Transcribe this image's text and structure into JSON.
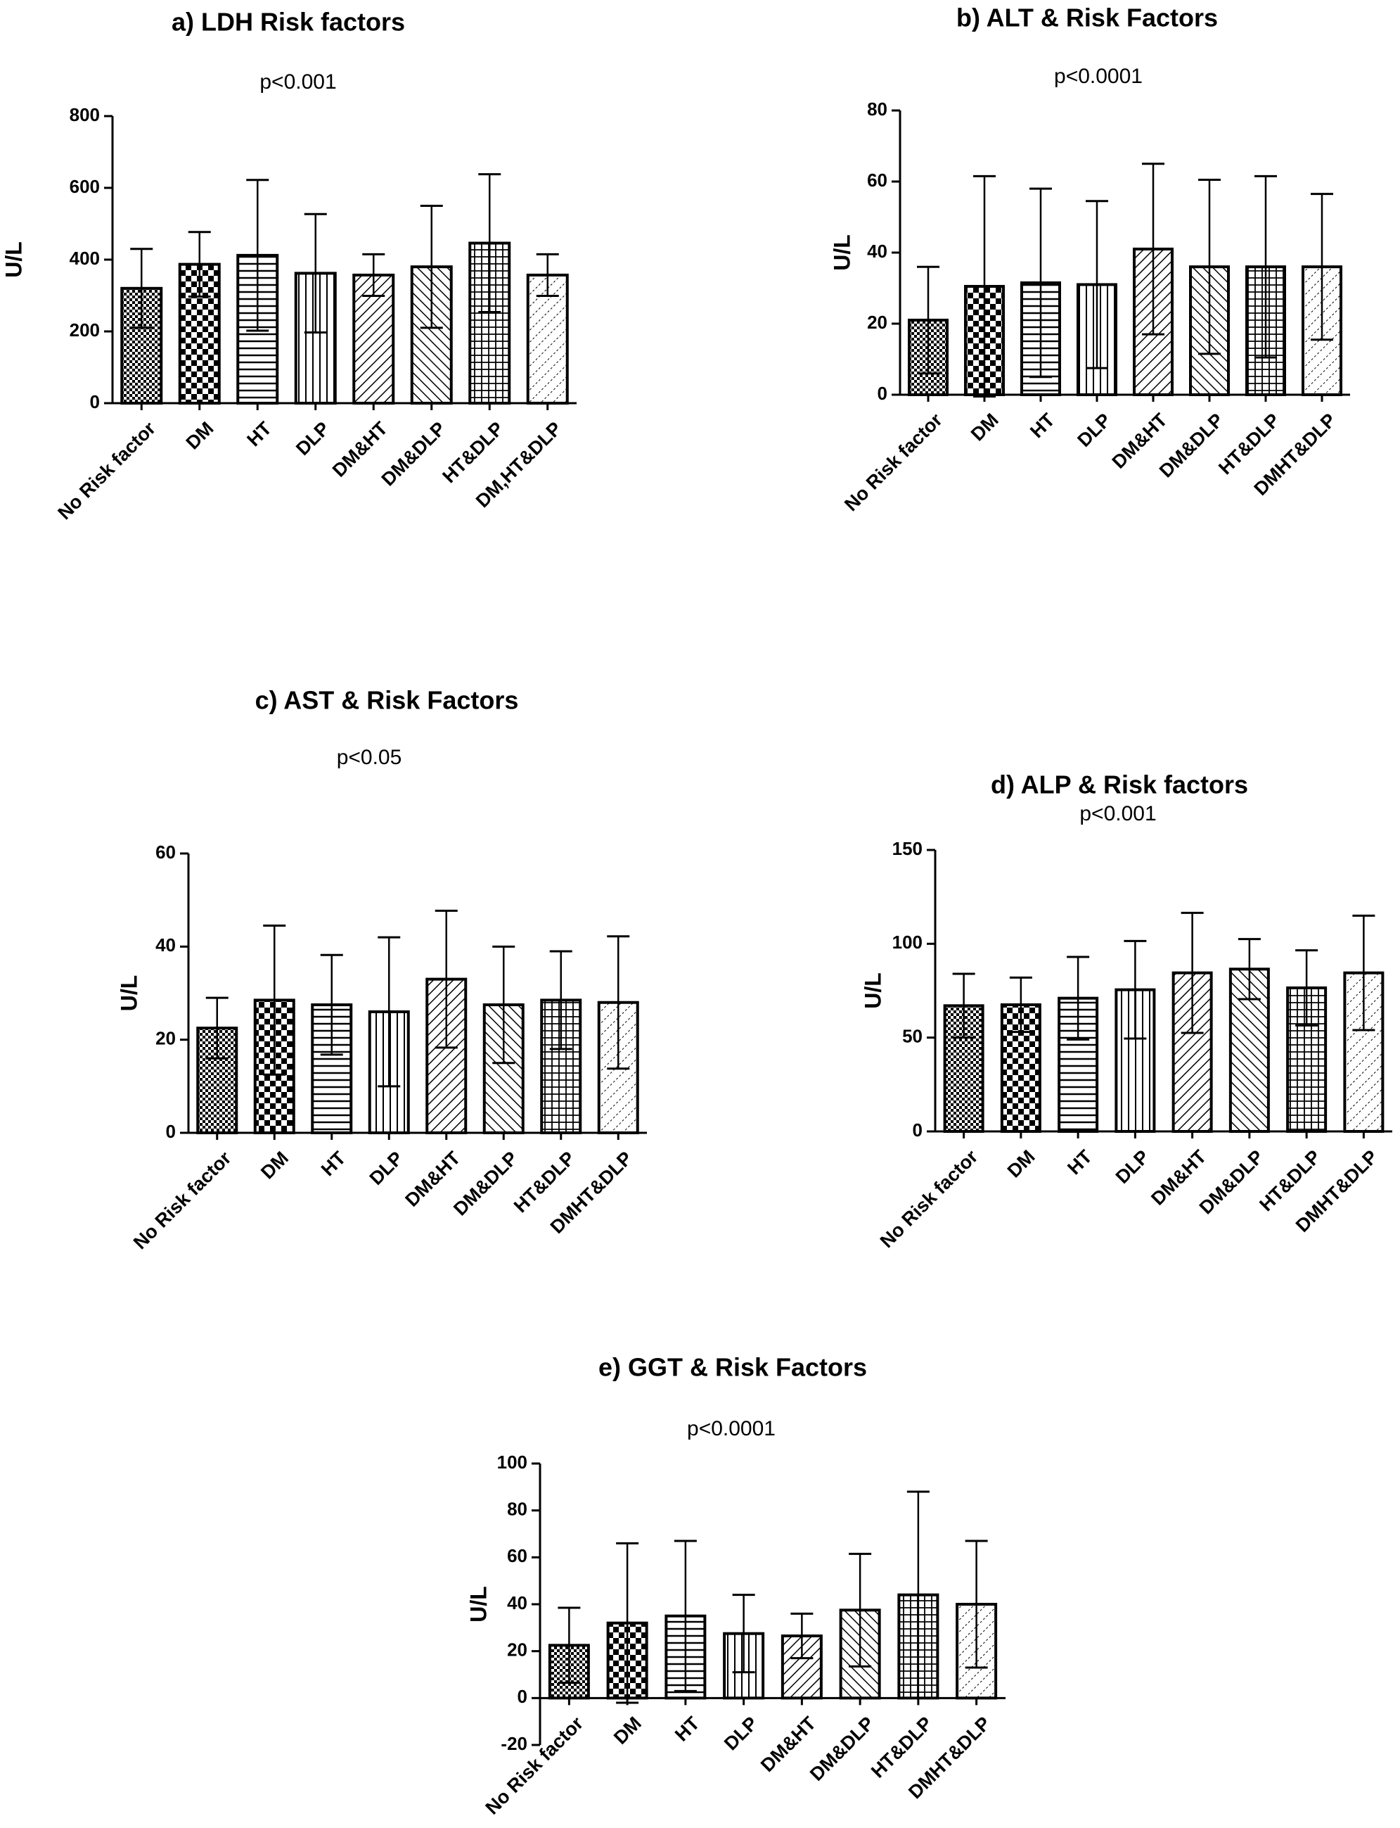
{
  "chart_data": [
    {
      "type": "bar",
      "title": "a) LDH Risk factors",
      "subtitle": "p<0.001",
      "ylabel": "U/L",
      "ylim": [
        0,
        800
      ],
      "yticks": [
        0,
        200,
        400,
        600,
        800
      ],
      "categories": [
        "No Risk factor",
        "DM",
        "HT",
        "DLP",
        "DM&HT",
        "DM&DLP",
        "HT&DLP",
        "DM,HT&DLP"
      ],
      "values": [
        320,
        387,
        412,
        362,
        357,
        380,
        446,
        357
      ],
      "errors": [
        110,
        90,
        210,
        165,
        58,
        170,
        192,
        58
      ],
      "error_style": "both"
    },
    {
      "type": "bar",
      "title": "b) ALT & Risk Factors",
      "subtitle": "p<0.0001",
      "ylabel": "U/L",
      "ylim": [
        0,
        80
      ],
      "yticks": [
        0,
        20,
        40,
        60,
        80
      ],
      "categories": [
        "No Risk factor",
        "DM",
        "HT",
        "DLP",
        "DM&HT",
        "DM&DLP",
        "HT&DLP",
        "DMHT&DLP"
      ],
      "values": [
        21,
        30.5,
        31.5,
        31,
        41,
        36,
        36,
        36
      ],
      "errors": [
        15,
        31,
        26.5,
        23.5,
        24,
        24.5,
        25.5,
        20.5
      ],
      "error_style": "both"
    },
    {
      "type": "bar",
      "title": "c) AST & Risk Factors",
      "subtitle": "p<0.05",
      "ylabel": "U/L",
      "ylim": [
        0,
        60
      ],
      "yticks": [
        0,
        20,
        40,
        60
      ],
      "categories": [
        "No Risk factor",
        "DM",
        "HT",
        "DLP",
        "DM&HT",
        "DM&DLP",
        "HT&DLP",
        "DMHT&DLP"
      ],
      "values": [
        22.5,
        28.5,
        27.5,
        26,
        33,
        27.5,
        28.5,
        28
      ],
      "errors": [
        6.5,
        16,
        10.7,
        16,
        14.7,
        12.5,
        10.5,
        14.2
      ],
      "error_style": "both"
    },
    {
      "type": "bar",
      "title": "d) ALP & Risk factors",
      "subtitle": "p<0.001",
      "ylabel": "U/L",
      "ylim": [
        0,
        150
      ],
      "yticks": [
        0,
        50,
        100,
        150
      ],
      "categories": [
        "No Risk factor",
        "DM",
        "HT",
        "DLP",
        "DM&HT",
        "DM&DLP",
        "HT&DLP",
        "DMHT&DLP"
      ],
      "values": [
        67,
        67.5,
        71,
        75.5,
        84.5,
        86.5,
        76.5,
        84.5
      ],
      "errors": [
        17,
        14.5,
        22,
        26,
        32,
        16,
        20,
        30.5
      ],
      "error_style": "both"
    },
    {
      "type": "bar",
      "title": "e) GGT & Risk Factors",
      "subtitle": "p<0.0001",
      "ylabel": "U/L",
      "ylim": [
        -20,
        100
      ],
      "yticks": [
        -20,
        0,
        20,
        40,
        60,
        80,
        100
      ],
      "categories": [
        "No Risk factor",
        "DM",
        "HT",
        "DLP",
        "DM&HT",
        "DM&DLP",
        "HT&DLP",
        "DMHT&DLP"
      ],
      "values": [
        22.5,
        32,
        35,
        27.5,
        26.5,
        37.5,
        44,
        40
      ],
      "errors": [
        16,
        34,
        32,
        16.5,
        9.5,
        24,
        44,
        27
      ],
      "error_style": "both"
    }
  ]
}
